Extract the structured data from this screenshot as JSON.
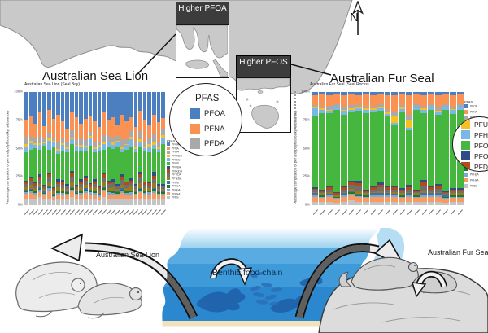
{
  "colors": {
    "land": "#c9c9c9",
    "land_stroke": "#8f8f8f",
    "callout_box_bg": "#3c3c3c",
    "water_bands": [
      "#9ed3f0",
      "#58ace1",
      "#3e9ad9",
      "#2b87ce"
    ],
    "sand": "#f1e1bc",
    "sand_line": "#8a5a28",
    "silhouette": "#1f5fa8",
    "lagoon": "#b5ddf4"
  },
  "map": {
    "higher_pfoa": "Higher PFOA",
    "higher_pfos": "Higher PFOS",
    "compass": "N",
    "sea_lion_label": "Australian Sea Lion",
    "fur_seal_label": "Australian Fur Seal"
  },
  "legend": {
    "title": "PFAS",
    "compounds": [
      {
        "name": "PFOA",
        "color": "#4b7fc0"
      },
      {
        "name": "PFNA",
        "color": "#f99252"
      },
      {
        "name": "PFDA",
        "color": "#a9a9a9"
      },
      {
        "name": "PFUnDA",
        "color": "#f6bf26"
      },
      {
        "name": "PFHxS",
        "color": "#78b7e6"
      },
      {
        "name": "PFOS",
        "color": "#45b63e"
      },
      {
        "name": "PFOSA",
        "color": "#2e4d86"
      },
      {
        "name": "PFDoDA",
        "color": "#b34a18"
      },
      {
        "name": "PFTrDA",
        "color": "#6f6f6f"
      },
      {
        "name": "PFTeDA",
        "color": "#9a7b20"
      },
      {
        "name": "PFDS",
        "color": "#3e6fb0"
      },
      {
        "name": "PFPeA",
        "color": "#1d7a26"
      },
      {
        "name": "PFHpA",
        "color": "#7aa9d6"
      },
      {
        "name": "PFHxA",
        "color": "#f99b60"
      },
      {
        "name": "PFBS",
        "color": "#c4c4c4"
      }
    ],
    "left_circle_indexes": [
      0,
      1,
      2
    ],
    "right_circle_indexes": [
      3,
      4,
      5,
      6,
      7
    ]
  },
  "chart_data": [
    {
      "type": "stacked-bar",
      "title": "Australian Sea Lion (Seal Bay)",
      "ylabel": "Percentage composition of per and polyfluoroalkyl substances",
      "y_ticks": [
        "100%",
        "75%",
        "50%",
        "25%",
        "0%"
      ],
      "ylim": [
        0,
        100
      ],
      "x_tick_count": 31,
      "x_tick_labels_legible": false,
      "series_order": [
        "PFOA",
        "PFNA",
        "PFDA",
        "PFUnDA",
        "PFHxS",
        "PFOS",
        "PFOSA",
        "PFDoDA",
        "PFTrDA",
        "PFTeDA",
        "PFDS",
        "PFPeA",
        "PFHpA",
        "PFHxA",
        "PFBS"
      ],
      "bars": [
        [
          26,
          14,
          7,
          2,
          5,
          26,
          1,
          2,
          3,
          2,
          1,
          1,
          2,
          4,
          6
        ],
        [
          22,
          18,
          4,
          2,
          6,
          24,
          2,
          2,
          4,
          3,
          1,
          1,
          2,
          5,
          6
        ],
        [
          28,
          12,
          5,
          1,
          3,
          30,
          1,
          2,
          2,
          2,
          1,
          1,
          2,
          4,
          5
        ],
        [
          18,
          22,
          6,
          2,
          4,
          22,
          2,
          3,
          4,
          3,
          1,
          1,
          2,
          5,
          7
        ],
        [
          30,
          10,
          4,
          1,
          2,
          34,
          1,
          1,
          2,
          2,
          1,
          1,
          1,
          4,
          5
        ],
        [
          16,
          20,
          5,
          2,
          8,
          20,
          2,
          2,
          4,
          4,
          1,
          1,
          3,
          6,
          6
        ],
        [
          24,
          16,
          3,
          1,
          4,
          36,
          1,
          1,
          2,
          2,
          1,
          1,
          1,
          3,
          4
        ],
        [
          20,
          24,
          6,
          2,
          3,
          22,
          2,
          2,
          3,
          3,
          1,
          1,
          2,
          4,
          5
        ],
        [
          26,
          14,
          5,
          2,
          5,
          26,
          2,
          2,
          3,
          2,
          1,
          1,
          2,
          4,
          5
        ],
        [
          32,
          12,
          4,
          1,
          3,
          28,
          1,
          1,
          2,
          2,
          1,
          1,
          1,
          4,
          5
        ],
        [
          18,
          16,
          6,
          2,
          4,
          24,
          2,
          3,
          5,
          4,
          1,
          1,
          2,
          5,
          7
        ],
        [
          22,
          20,
          4,
          1,
          4,
          30,
          1,
          1,
          2,
          2,
          1,
          1,
          1,
          4,
          5
        ],
        [
          28,
          14,
          5,
          2,
          3,
          26,
          2,
          2,
          3,
          3,
          1,
          1,
          2,
          4,
          5
        ],
        [
          24,
          18,
          6,
          1,
          4,
          22,
          2,
          2,
          4,
          3,
          1,
          1,
          2,
          5,
          6
        ],
        [
          20,
          14,
          4,
          2,
          6,
          32,
          1,
          1,
          2,
          2,
          1,
          1,
          2,
          4,
          5
        ],
        [
          26,
          18,
          5,
          1,
          3,
          24,
          2,
          2,
          3,
          3,
          1,
          1,
          2,
          4,
          5
        ],
        [
          30,
          12,
          3,
          1,
          4,
          30,
          1,
          1,
          2,
          2,
          1,
          1,
          1,
          3,
          4
        ],
        [
          18,
          20,
          6,
          2,
          5,
          20,
          2,
          3,
          4,
          4,
          1,
          1,
          2,
          5,
          7
        ],
        [
          24,
          14,
          5,
          1,
          3,
          30,
          1,
          2,
          3,
          2,
          1,
          1,
          2,
          4,
          5
        ],
        [
          22,
          18,
          4,
          2,
          4,
          26,
          2,
          2,
          3,
          3,
          1,
          1,
          2,
          4,
          5
        ],
        [
          28,
          10,
          4,
          1,
          5,
          32,
          1,
          1,
          2,
          2,
          1,
          1,
          1,
          4,
          5
        ],
        [
          20,
          22,
          6,
          2,
          3,
          20,
          2,
          3,
          4,
          3,
          1,
          1,
          2,
          5,
          6
        ],
        [
          26,
          16,
          4,
          1,
          4,
          28,
          1,
          2,
          3,
          2,
          1,
          1,
          2,
          4,
          5
        ],
        [
          22,
          12,
          5,
          2,
          6,
          28,
          2,
          2,
          3,
          3,
          1,
          1,
          2,
          4,
          5
        ],
        [
          30,
          14,
          4,
          1,
          3,
          28,
          1,
          1,
          2,
          2,
          1,
          1,
          1,
          4,
          5
        ],
        [
          16,
          18,
          7,
          2,
          4,
          22,
          2,
          3,
          5,
          4,
          1,
          1,
          2,
          5,
          6
        ],
        [
          24,
          20,
          4,
          1,
          3,
          26,
          1,
          2,
          3,
          2,
          1,
          1,
          2,
          4,
          5
        ],
        [
          28,
          12,
          5,
          2,
          5,
          26,
          1,
          2,
          2,
          2,
          1,
          1,
          2,
          4,
          5
        ],
        [
          20,
          16,
          8,
          2,
          4,
          20,
          3,
          3,
          4,
          4,
          1,
          1,
          2,
          5,
          6
        ],
        [
          26,
          18,
          4,
          1,
          3,
          28,
          1,
          1,
          2,
          2,
          1,
          1,
          1,
          4,
          5
        ],
        [
          22,
          10,
          5,
          2,
          6,
          34,
          1,
          1,
          2,
          2,
          1,
          1,
          1,
          4,
          5
        ]
      ]
    },
    {
      "type": "stacked-bar",
      "title": "Australian Fur Seal (Seal Rocks)",
      "ylabel": "Percentage composition of per and polyfluoroalkyl substances",
      "y_ticks": [
        "100%",
        "75%",
        "50%",
        "25%",
        "0%"
      ],
      "ylim": [
        0,
        100
      ],
      "x_tick_count": 21,
      "x_tick_labels_legible": false,
      "series_order": [
        "PFOA",
        "PFNA",
        "PFDA",
        "PFUnDA",
        "PFHxS",
        "PFOS",
        "PFOSA",
        "PFDoDA",
        "PFTrDA",
        "PFTeDA",
        "PFDS",
        "PFPeA",
        "PFHpA",
        "PFHxA",
        "PFBS"
      ],
      "bars": [
        [
          3,
          8,
          2,
          1,
          6,
          60,
          1,
          1,
          2,
          1,
          1,
          1,
          1,
          4,
          3
        ],
        [
          2,
          10,
          2,
          1,
          3,
          64,
          1,
          1,
          1,
          1,
          1,
          1,
          1,
          3,
          3
        ],
        [
          3,
          9,
          3,
          1,
          2,
          62,
          1,
          2,
          2,
          1,
          1,
          1,
          1,
          4,
          3
        ],
        [
          2,
          8,
          2,
          1,
          2,
          68,
          1,
          1,
          1,
          1,
          0,
          1,
          1,
          3,
          2
        ],
        [
          3,
          10,
          2,
          1,
          3,
          60,
          1,
          2,
          2,
          1,
          1,
          1,
          1,
          4,
          3
        ],
        [
          2,
          9,
          3,
          1,
          2,
          58,
          2,
          2,
          3,
          2,
          1,
          1,
          1,
          5,
          4
        ],
        [
          3,
          8,
          2,
          1,
          2,
          60,
          2,
          3,
          4,
          2,
          1,
          1,
          1,
          4,
          3
        ],
        [
          2,
          10,
          2,
          1,
          3,
          64,
          1,
          1,
          1,
          1,
          1,
          1,
          1,
          3,
          3
        ],
        [
          3,
          9,
          2,
          1,
          2,
          62,
          1,
          2,
          2,
          1,
          1,
          1,
          1,
          4,
          3
        ],
        [
          2,
          8,
          3,
          1,
          2,
          60,
          2,
          2,
          3,
          2,
          1,
          1,
          1,
          4,
          3
        ],
        [
          3,
          12,
          2,
          1,
          2,
          58,
          1,
          2,
          2,
          1,
          1,
          1,
          1,
          4,
          3
        ],
        [
          3,
          14,
          3,
          6,
          2,
          52,
          1,
          2,
          2,
          1,
          1,
          1,
          1,
          4,
          3
        ],
        [
          2,
          9,
          2,
          1,
          2,
          64,
          1,
          1,
          2,
          1,
          1,
          1,
          1,
          3,
          3
        ],
        [
          3,
          16,
          4,
          7,
          2,
          46,
          2,
          2,
          2,
          1,
          1,
          1,
          1,
          4,
          3
        ],
        [
          2,
          8,
          2,
          1,
          2,
          66,
          1,
          1,
          1,
          1,
          1,
          1,
          1,
          3,
          3
        ],
        [
          3,
          9,
          2,
          1,
          3,
          56,
          2,
          3,
          4,
          2,
          1,
          1,
          1,
          4,
          3
        ],
        [
          2,
          8,
          2,
          1,
          2,
          62,
          1,
          2,
          2,
          1,
          1,
          1,
          1,
          4,
          3
        ],
        [
          3,
          10,
          3,
          1,
          2,
          58,
          2,
          2,
          3,
          1,
          1,
          1,
          1,
          4,
          3
        ],
        [
          2,
          8,
          2,
          1,
          2,
          66,
          1,
          1,
          1,
          1,
          1,
          1,
          1,
          3,
          2
        ],
        [
          3,
          9,
          2,
          1,
          3,
          62,
          1,
          1,
          2,
          1,
          1,
          1,
          1,
          3,
          3
        ],
        [
          2,
          8,
          2,
          1,
          2,
          64,
          1,
          1,
          2,
          1,
          1,
          1,
          1,
          3,
          3
        ]
      ]
    }
  ],
  "footer": {
    "benthic_label": "Benthic food chain",
    "sea_lion_caption": "Australian Sea Lion",
    "fur_seal_caption": "Australian Fur Seal"
  }
}
